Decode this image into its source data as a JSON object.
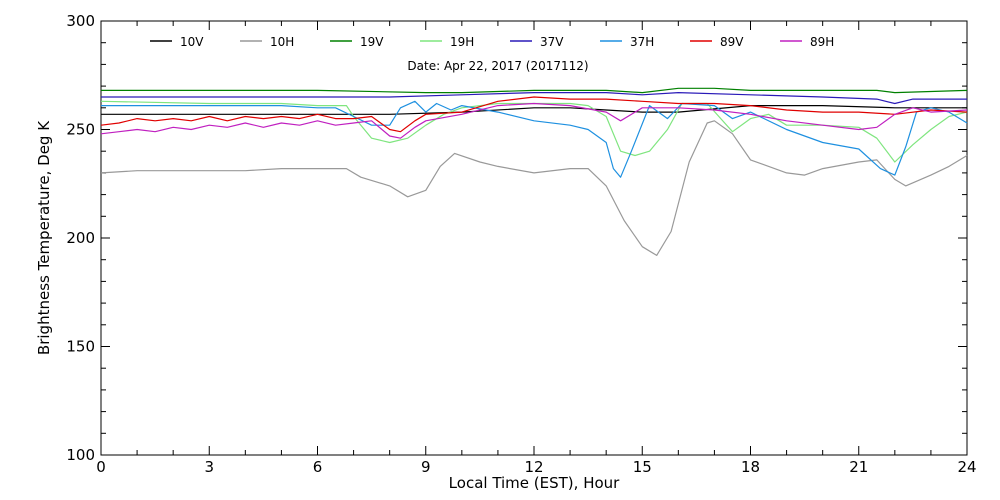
{
  "chart_data": {
    "type": "line",
    "title": "",
    "subtitle": "Date: Apr 22, 2017 (2017112)",
    "xlabel": "Local Time (EST), Hour",
    "ylabel": "Brightness Temperature, Deg K",
    "xlim": [
      0,
      24
    ],
    "ylim": [
      100,
      300
    ],
    "x_ticks": [
      0,
      3,
      6,
      9,
      12,
      15,
      18,
      21,
      24
    ],
    "x_tick_labels": [
      "0",
      "3",
      "6",
      "9",
      "12",
      "15",
      "18",
      "21",
      "24"
    ],
    "y_ticks": [
      100,
      150,
      200,
      250,
      300
    ],
    "y_tick_labels": [
      "100",
      "150",
      "200",
      "250",
      "300"
    ],
    "grid": false,
    "legend_position": "top",
    "series": [
      {
        "name": "10V",
        "color": "#000000",
        "points": [
          [
            0,
            257
          ],
          [
            2,
            257
          ],
          [
            4,
            257
          ],
          [
            6,
            257
          ],
          [
            8,
            257
          ],
          [
            10,
            258
          ],
          [
            12,
            260
          ],
          [
            13,
            260
          ],
          [
            14,
            259
          ],
          [
            15,
            258
          ],
          [
            16,
            258
          ],
          [
            18,
            261
          ],
          [
            20,
            261
          ],
          [
            22,
            260
          ],
          [
            24,
            260
          ]
        ]
      },
      {
        "name": "10H",
        "color": "#999999",
        "points": [
          [
            0,
            230
          ],
          [
            1,
            231
          ],
          [
            2,
            231
          ],
          [
            3,
            231
          ],
          [
            4,
            231
          ],
          [
            5,
            232
          ],
          [
            6,
            232
          ],
          [
            6.8,
            232
          ],
          [
            7.2,
            228
          ],
          [
            8,
            224
          ],
          [
            8.5,
            219
          ],
          [
            9,
            222
          ],
          [
            9.4,
            233
          ],
          [
            9.8,
            239
          ],
          [
            10.5,
            235
          ],
          [
            11,
            233
          ],
          [
            12,
            230
          ],
          [
            13,
            232
          ],
          [
            13.5,
            232
          ],
          [
            14,
            224
          ],
          [
            14.5,
            208
          ],
          [
            15,
            196
          ],
          [
            15.4,
            192
          ],
          [
            15.8,
            203
          ],
          [
            16.3,
            235
          ],
          [
            16.8,
            253
          ],
          [
            17,
            254
          ],
          [
            17.5,
            248
          ],
          [
            18,
            236
          ],
          [
            19,
            230
          ],
          [
            19.5,
            229
          ],
          [
            20,
            232
          ],
          [
            21,
            235
          ],
          [
            21.5,
            236
          ],
          [
            22,
            227
          ],
          [
            22.3,
            224
          ],
          [
            23,
            229
          ],
          [
            23.5,
            233
          ],
          [
            24,
            238
          ]
        ]
      },
      {
        "name": "19V",
        "color": "#008000",
        "points": [
          [
            0,
            268
          ],
          [
            3,
            268
          ],
          [
            6,
            268
          ],
          [
            9,
            267
          ],
          [
            10,
            267
          ],
          [
            12,
            268
          ],
          [
            14,
            268
          ],
          [
            15,
            267
          ],
          [
            16,
            269
          ],
          [
            17,
            269
          ],
          [
            18,
            268
          ],
          [
            20,
            268
          ],
          [
            21.5,
            268
          ],
          [
            22,
            267
          ],
          [
            24,
            268
          ]
        ]
      },
      {
        "name": "19H",
        "color": "#7fe57f",
        "points": [
          [
            0,
            263
          ],
          [
            3,
            262
          ],
          [
            5,
            262
          ],
          [
            6,
            261
          ],
          [
            6.8,
            261
          ],
          [
            7,
            256
          ],
          [
            7.5,
            246
          ],
          [
            8,
            244
          ],
          [
            8.5,
            246
          ],
          [
            9,
            252
          ],
          [
            9.5,
            257
          ],
          [
            10,
            260
          ],
          [
            11,
            262
          ],
          [
            12,
            262
          ],
          [
            13,
            262
          ],
          [
            13.5,
            261
          ],
          [
            14,
            256
          ],
          [
            14.4,
            240
          ],
          [
            14.8,
            238
          ],
          [
            15.2,
            240
          ],
          [
            15.7,
            250
          ],
          [
            16.1,
            262
          ],
          [
            16.8,
            262
          ],
          [
            17.5,
            249
          ],
          [
            18,
            255
          ],
          [
            18.5,
            257
          ],
          [
            19,
            252
          ],
          [
            20,
            252
          ],
          [
            21,
            251
          ],
          [
            21.5,
            246
          ],
          [
            22,
            235
          ],
          [
            22.5,
            243
          ],
          [
            23,
            250
          ],
          [
            23.5,
            256
          ],
          [
            24,
            258
          ]
        ]
      },
      {
        "name": "37V",
        "color": "#2a1ab8",
        "points": [
          [
            0,
            265
          ],
          [
            2,
            265
          ],
          [
            4,
            265
          ],
          [
            6,
            265
          ],
          [
            8,
            265
          ],
          [
            10,
            266
          ],
          [
            12,
            267
          ],
          [
            14,
            267
          ],
          [
            15,
            266
          ],
          [
            16,
            267
          ],
          [
            18,
            266
          ],
          [
            20,
            265
          ],
          [
            21.5,
            264
          ],
          [
            22,
            262
          ],
          [
            22.5,
            264
          ],
          [
            24,
            264
          ]
        ]
      },
      {
        "name": "37H",
        "color": "#1e90e0",
        "points": [
          [
            0,
            261
          ],
          [
            2,
            261
          ],
          [
            4,
            261
          ],
          [
            5,
            261
          ],
          [
            6,
            260
          ],
          [
            6.5,
            260
          ],
          [
            7,
            256
          ],
          [
            7.5,
            252
          ],
          [
            8,
            252
          ],
          [
            8.3,
            260
          ],
          [
            8.7,
            263
          ],
          [
            9,
            258
          ],
          [
            9.3,
            262
          ],
          [
            9.7,
            259
          ],
          [
            10,
            261
          ],
          [
            11,
            258
          ],
          [
            12,
            254
          ],
          [
            13,
            252
          ],
          [
            13.5,
            250
          ],
          [
            14,
            244
          ],
          [
            14.2,
            232
          ],
          [
            14.4,
            228
          ],
          [
            14.7,
            240
          ],
          [
            15.2,
            261
          ],
          [
            15.7,
            255
          ],
          [
            16.1,
            262
          ],
          [
            17,
            261
          ],
          [
            17.5,
            255
          ],
          [
            18,
            258
          ],
          [
            19,
            250
          ],
          [
            20,
            244
          ],
          [
            21,
            241
          ],
          [
            21.6,
            232
          ],
          [
            22,
            229
          ],
          [
            22.3,
            242
          ],
          [
            22.6,
            258
          ],
          [
            23,
            260
          ],
          [
            23.5,
            258
          ],
          [
            24,
            253
          ]
        ]
      },
      {
        "name": "89V",
        "color": "#e00000",
        "points": [
          [
            0,
            252
          ],
          [
            0.5,
            253
          ],
          [
            1,
            255
          ],
          [
            1.5,
            254
          ],
          [
            2,
            255
          ],
          [
            2.5,
            254
          ],
          [
            3,
            256
          ],
          [
            3.5,
            254
          ],
          [
            4,
            256
          ],
          [
            4.5,
            255
          ],
          [
            5,
            256
          ],
          [
            5.5,
            255
          ],
          [
            6,
            257
          ],
          [
            6.5,
            255
          ],
          [
            7,
            255
          ],
          [
            7.5,
            256
          ],
          [
            8,
            250
          ],
          [
            8.3,
            249
          ],
          [
            8.7,
            254
          ],
          [
            9,
            257
          ],
          [
            10,
            258
          ],
          [
            11,
            263
          ],
          [
            12,
            265
          ],
          [
            13,
            264
          ],
          [
            14,
            264
          ],
          [
            15,
            263
          ],
          [
            16,
            262
          ],
          [
            17,
            262
          ],
          [
            18,
            261
          ],
          [
            19,
            259
          ],
          [
            20,
            258
          ],
          [
            21,
            258
          ],
          [
            22,
            257
          ],
          [
            23,
            259
          ],
          [
            24,
            258
          ]
        ]
      },
      {
        "name": "89H",
        "color": "#c020c0",
        "points": [
          [
            0,
            248
          ],
          [
            0.5,
            249
          ],
          [
            1,
            250
          ],
          [
            1.5,
            249
          ],
          [
            2,
            251
          ],
          [
            2.5,
            250
          ],
          [
            3,
            252
          ],
          [
            3.5,
            251
          ],
          [
            4,
            253
          ],
          [
            4.5,
            251
          ],
          [
            5,
            253
          ],
          [
            5.5,
            252
          ],
          [
            6,
            254
          ],
          [
            6.5,
            252
          ],
          [
            7,
            253
          ],
          [
            7.5,
            254
          ],
          [
            8,
            247
          ],
          [
            8.3,
            246
          ],
          [
            8.7,
            251
          ],
          [
            9,
            254
          ],
          [
            10,
            257
          ],
          [
            11,
            261
          ],
          [
            12,
            262
          ],
          [
            13,
            261
          ],
          [
            14,
            258
          ],
          [
            14.4,
            254
          ],
          [
            15,
            260
          ],
          [
            16,
            260
          ],
          [
            17,
            259
          ],
          [
            18,
            257
          ],
          [
            19,
            254
          ],
          [
            20,
            252
          ],
          [
            21,
            250
          ],
          [
            21.5,
            251
          ],
          [
            22,
            257
          ],
          [
            22.5,
            260
          ],
          [
            23,
            258
          ],
          [
            24,
            259
          ]
        ]
      }
    ]
  }
}
